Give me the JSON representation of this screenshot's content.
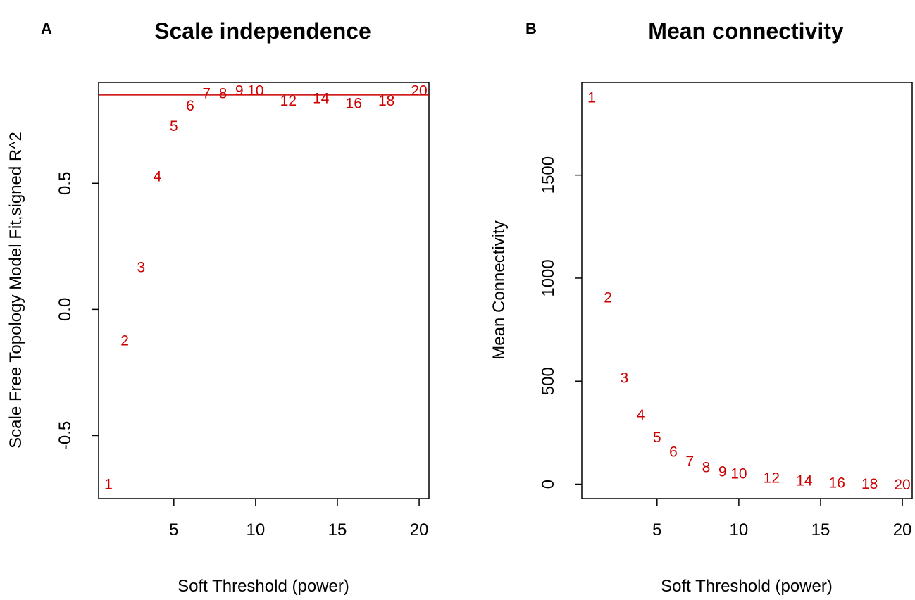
{
  "colors": {
    "points": "#cc0000",
    "hline": "#cc0000"
  },
  "chart_data": [
    {
      "panel": "A",
      "type": "scatter",
      "title": "Scale independence",
      "xlabel": "Soft Threshold (power)",
      "ylabel": "Scale Free Topology Model Fit,signed R^2",
      "xlim": [
        0.4,
        20.6
      ],
      "ylim": [
        -0.75,
        0.9
      ],
      "xticks": [
        5,
        10,
        15,
        20
      ],
      "yticks": [
        -0.5,
        0.0,
        0.5
      ],
      "ytick_labels": [
        "-0.5",
        "0.0",
        "0.5"
      ],
      "hline": 0.85,
      "points": [
        {
          "x": 1,
          "y": -0.69,
          "label": "1"
        },
        {
          "x": 2,
          "y": -0.12,
          "label": "2"
        },
        {
          "x": 3,
          "y": 0.17,
          "label": "3"
        },
        {
          "x": 4,
          "y": 0.53,
          "label": "4"
        },
        {
          "x": 5,
          "y": 0.73,
          "label": "5"
        },
        {
          "x": 6,
          "y": 0.81,
          "label": "6"
        },
        {
          "x": 7,
          "y": 0.86,
          "label": "7"
        },
        {
          "x": 8,
          "y": 0.86,
          "label": "8"
        },
        {
          "x": 9,
          "y": 0.87,
          "label": "9"
        },
        {
          "x": 10,
          "y": 0.87,
          "label": "10"
        },
        {
          "x": 12,
          "y": 0.83,
          "label": "12"
        },
        {
          "x": 14,
          "y": 0.84,
          "label": "14"
        },
        {
          "x": 16,
          "y": 0.82,
          "label": "16"
        },
        {
          "x": 18,
          "y": 0.83,
          "label": "18"
        },
        {
          "x": 20,
          "y": 0.87,
          "label": "20"
        }
      ]
    },
    {
      "panel": "B",
      "type": "scatter",
      "title": "Mean connectivity",
      "xlabel": "Soft Threshold (power)",
      "ylabel": "Mean Connectivity",
      "xlim": [
        0.4,
        20.6
      ],
      "ylim": [
        -70,
        1950
      ],
      "xticks": [
        5,
        10,
        15,
        20
      ],
      "yticks": [
        0,
        500,
        1000,
        1500
      ],
      "ytick_labels": [
        "0",
        "500",
        "1000",
        "1500"
      ],
      "points": [
        {
          "x": 1,
          "y": 1880,
          "label": "1"
        },
        {
          "x": 2,
          "y": 910,
          "label": "2"
        },
        {
          "x": 3,
          "y": 520,
          "label": "3"
        },
        {
          "x": 4,
          "y": 340,
          "label": "4"
        },
        {
          "x": 5,
          "y": 230,
          "label": "5"
        },
        {
          "x": 6,
          "y": 160,
          "label": "6"
        },
        {
          "x": 7,
          "y": 115,
          "label": "7"
        },
        {
          "x": 8,
          "y": 85,
          "label": "8"
        },
        {
          "x": 9,
          "y": 65,
          "label": "9"
        },
        {
          "x": 10,
          "y": 55,
          "label": "10"
        },
        {
          "x": 12,
          "y": 35,
          "label": "12"
        },
        {
          "x": 14,
          "y": 20,
          "label": "14"
        },
        {
          "x": 16,
          "y": 10,
          "label": "16"
        },
        {
          "x": 18,
          "y": 5,
          "label": "18"
        },
        {
          "x": 20,
          "y": 2,
          "label": "20"
        }
      ]
    }
  ]
}
